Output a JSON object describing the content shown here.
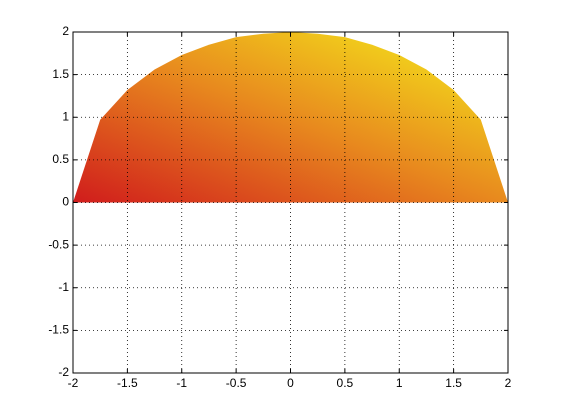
{
  "chart_data": {
    "type": "area",
    "x": [
      -2,
      -1.75,
      -1.5,
      -1.25,
      -1,
      -0.75,
      -0.5,
      -0.25,
      0,
      0.25,
      0.5,
      0.75,
      1,
      1.25,
      1.5,
      1.75,
      2
    ],
    "values": [
      0,
      0.97,
      1.32,
      1.56,
      1.73,
      1.85,
      1.94,
      1.98,
      2,
      1.98,
      1.94,
      1.85,
      1.73,
      1.56,
      1.32,
      0.97,
      0
    ],
    "colors": [
      "#d01c1c",
      "#e88a1e",
      "#f6f21a"
    ],
    "xlim": [
      -2,
      2
    ],
    "ylim": [
      -2,
      2
    ],
    "xticks": [
      -2,
      -1.5,
      -1,
      -0.5,
      0,
      0.5,
      1,
      1.5,
      2
    ],
    "yticks": [
      -2,
      -1.5,
      -1,
      -0.5,
      0,
      0.5,
      1,
      1.5,
      2
    ],
    "grid": true
  }
}
